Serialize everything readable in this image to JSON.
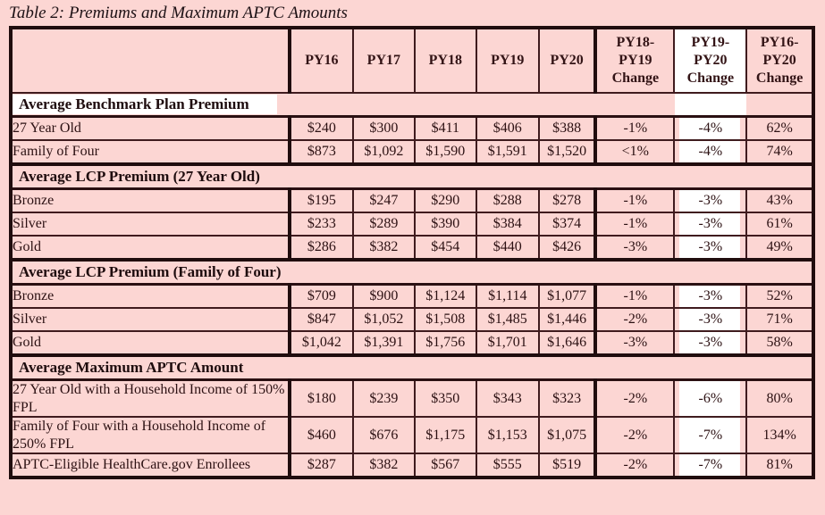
{
  "page": {
    "background_color": "#fcd6d3",
    "highlight_color": "#ffffff",
    "border_color": "#200d0e",
    "text_color": "#2c1113"
  },
  "title": "Table 2: Premiums and Maximum APTC Amounts",
  "table": {
    "columns": [
      "",
      "PY16",
      "PY17",
      "PY18",
      "PY19",
      "PY20",
      "PY18-\nPY19\nChange",
      "PY19-\nPY20\nChange",
      "PY16-\nPY20\nChange"
    ],
    "value_columns": [
      "PY16",
      "PY17",
      "PY18",
      "PY19",
      "PY20",
      "PY18-PY19-Change",
      "PY19-PY20-Change",
      "PY16-PY20-Change"
    ],
    "sections": [
      {
        "label": "Average Benchmark Plan Premium",
        "label_highlight": true,
        "col_highlight": true,
        "rows": [
          {
            "label": "27 Year Old",
            "values": [
              "$240",
              "$300",
              "$411",
              "$406",
              "$388",
              "-1%",
              "-4%",
              "62%"
            ]
          },
          {
            "label": "Family of Four",
            "values": [
              "$873",
              "$1,092",
              "$1,590",
              "$1,591",
              "$1,520",
              "<1%",
              "-4%",
              "74%"
            ]
          }
        ]
      },
      {
        "label": "Average LCP Premium (27 Year Old)",
        "label_highlight": false,
        "col_highlight": false,
        "rows": [
          {
            "label": "Bronze",
            "values": [
              "$195",
              "$247",
              "$290",
              "$288",
              "$278",
              "-1%",
              "-3%",
              "43%"
            ]
          },
          {
            "label": "Silver",
            "values": [
              "$233",
              "$289",
              "$390",
              "$384",
              "$374",
              "-1%",
              "-3%",
              "61%"
            ]
          },
          {
            "label": "Gold",
            "values": [
              "$286",
              "$382",
              "$454",
              "$440",
              "$426",
              "-3%",
              "-3%",
              "49%"
            ]
          }
        ]
      },
      {
        "label": "Average LCP Premium (Family of Four)",
        "label_highlight": false,
        "col_highlight": false,
        "rows": [
          {
            "label": "Bronze",
            "values": [
              "$709",
              "$900",
              "$1,124",
              "$1,114",
              "$1,077",
              "-1%",
              "-3%",
              "52%"
            ]
          },
          {
            "label": "Silver",
            "values": [
              "$847",
              "$1,052",
              "$1,508",
              "$1,485",
              "$1,446",
              "-2%",
              "-3%",
              "71%"
            ]
          },
          {
            "label": "Gold",
            "values": [
              "$1,042",
              "$1,391",
              "$1,756",
              "$1,701",
              "$1,646",
              "-3%",
              "-3%",
              "58%"
            ]
          }
        ]
      },
      {
        "label": "Average Maximum APTC Amount",
        "label_highlight": false,
        "col_highlight": false,
        "rows": [
          {
            "label": "27 Year Old with a Household Income of 150% FPL",
            "values": [
              "$180",
              "$239",
              "$350",
              "$343",
              "$323",
              "-2%",
              "-6%",
              "80%"
            ]
          },
          {
            "label": "Family of Four with a Household Income of 250% FPL",
            "values": [
              "$460",
              "$676",
              "$1,175",
              "$1,153",
              "$1,075",
              "-2%",
              "-7%",
              "134%"
            ]
          },
          {
            "label": "APTC-Eligible HealthCare.gov Enrollees",
            "values": [
              "$287",
              "$382",
              "$567",
              "$555",
              "$519",
              "-2%",
              "-7%",
              "81%"
            ]
          }
        ]
      }
    ]
  }
}
